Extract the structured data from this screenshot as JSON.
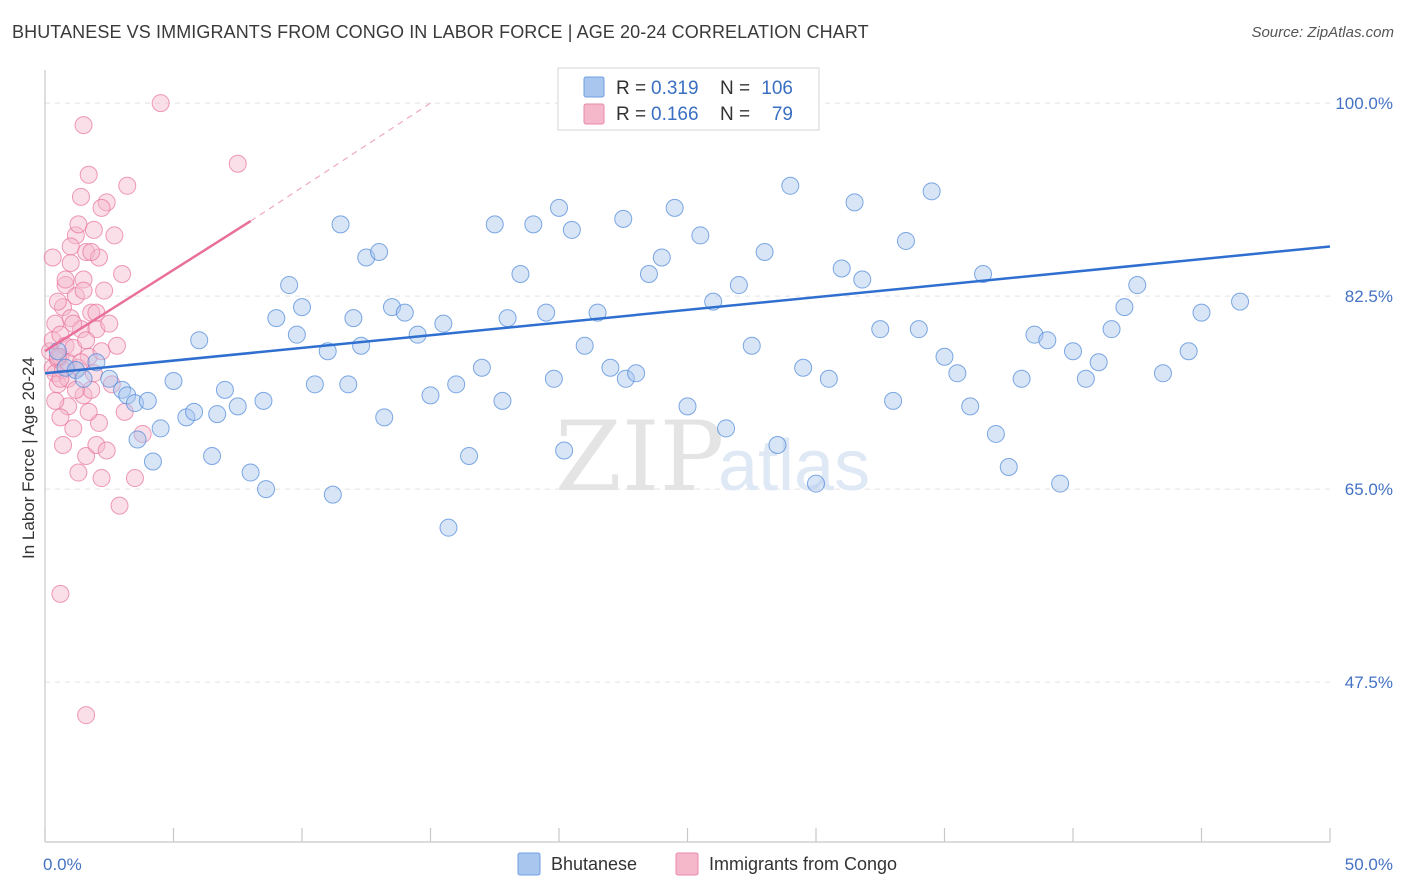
{
  "title": "BHUTANESE VS IMMIGRANTS FROM CONGO IN LABOR FORCE | AGE 20-24 CORRELATION CHART",
  "source": "Source: ZipAtlas.com",
  "watermark": {
    "zip": "ZIP",
    "atlas": "atlas"
  },
  "legend": {
    "rows": [
      {
        "r_label": "R =",
        "r_value": "0.319",
        "n_label": "N =",
        "n_value": "106",
        "color": "#a9c6ee"
      },
      {
        "r_label": "R =",
        "r_value": "0.166",
        "n_label": "N =",
        "n_value": "79",
        "color": "#f5b8cb"
      }
    ]
  },
  "bottom_legend": [
    {
      "label": "Bhutanese",
      "color": "#a9c6ee"
    },
    {
      "label": "Immigrants from Congo",
      "color": "#f5b8cb"
    }
  ],
  "chart_data": {
    "type": "scatter",
    "title": "BHUTANESE VS IMMIGRANTS FROM CONGO IN LABOR FORCE | AGE 20-24 CORRELATION CHART",
    "xlabel": "",
    "ylabel": "In Labor Force | Age 20-24",
    "xlim": [
      0,
      50
    ],
    "ylim": [
      33,
      103
    ],
    "x_tick_labels": [
      "0.0%",
      "50.0%"
    ],
    "y_ticks": [
      47.5,
      65.0,
      82.5,
      100.0
    ],
    "y_tick_labels": [
      "47.5%",
      "65.0%",
      "82.5%",
      "100.0%"
    ],
    "grid": true,
    "series": [
      {
        "name": "Bhutanese",
        "color": "#4a86d8",
        "fill": "#a9c6ee",
        "trend": {
          "x": [
            0,
            50
          ],
          "y": [
            75.5,
            87.0
          ]
        },
        "points": [
          [
            0.5,
            77.5
          ],
          [
            0.8,
            76.0
          ],
          [
            1.2,
            75.8
          ],
          [
            1.5,
            75.0
          ],
          [
            2.0,
            76.5
          ],
          [
            2.5,
            75.0
          ],
          [
            3.0,
            74.0
          ],
          [
            3.2,
            73.5
          ],
          [
            3.5,
            72.8
          ],
          [
            3.6,
            69.5
          ],
          [
            4.0,
            73.0
          ],
          [
            4.2,
            67.5
          ],
          [
            4.5,
            70.5
          ],
          [
            5.0,
            74.8
          ],
          [
            5.5,
            71.5
          ],
          [
            5.8,
            72.0
          ],
          [
            6.0,
            78.5
          ],
          [
            6.5,
            68.0
          ],
          [
            6.7,
            71.8
          ],
          [
            7.0,
            74.0
          ],
          [
            7.5,
            72.5
          ],
          [
            8.0,
            66.5
          ],
          [
            8.5,
            73.0
          ],
          [
            8.6,
            65.0
          ],
          [
            9.0,
            80.5
          ],
          [
            9.5,
            83.5
          ],
          [
            9.8,
            79.0
          ],
          [
            10.0,
            81.5
          ],
          [
            10.5,
            74.5
          ],
          [
            11.0,
            77.5
          ],
          [
            11.2,
            64.5
          ],
          [
            11.5,
            89.0
          ],
          [
            11.8,
            74.5
          ],
          [
            12.0,
            80.5
          ],
          [
            12.3,
            78.0
          ],
          [
            12.5,
            86.0
          ],
          [
            13.0,
            86.5
          ],
          [
            13.2,
            71.5
          ],
          [
            13.5,
            81.5
          ],
          [
            14.0,
            81.0
          ],
          [
            14.5,
            79.0
          ],
          [
            15.0,
            73.5
          ],
          [
            15.5,
            80.0
          ],
          [
            15.7,
            61.5
          ],
          [
            16.0,
            74.5
          ],
          [
            16.5,
            68.0
          ],
          [
            17.0,
            76.0
          ],
          [
            17.5,
            89.0
          ],
          [
            17.8,
            73.0
          ],
          [
            18.0,
            80.5
          ],
          [
            18.5,
            84.5
          ],
          [
            19.0,
            89.0
          ],
          [
            19.5,
            81.0
          ],
          [
            19.8,
            75.0
          ],
          [
            20.0,
            90.5
          ],
          [
            20.2,
            68.5
          ],
          [
            20.5,
            88.5
          ],
          [
            21.0,
            78.0
          ],
          [
            21.5,
            81.0
          ],
          [
            22.0,
            76.0
          ],
          [
            22.5,
            89.5
          ],
          [
            22.6,
            75.0
          ],
          [
            23.0,
            75.5
          ],
          [
            23.5,
            84.5
          ],
          [
            24.0,
            86.0
          ],
          [
            24.5,
            90.5
          ],
          [
            25.0,
            72.5
          ],
          [
            25.5,
            88.0
          ],
          [
            26.0,
            82.0
          ],
          [
            26.5,
            70.5
          ],
          [
            27.0,
            83.5
          ],
          [
            27.5,
            78.0
          ],
          [
            28.0,
            86.5
          ],
          [
            28.5,
            69.0
          ],
          [
            29.0,
            92.5
          ],
          [
            29.5,
            76.0
          ],
          [
            30.0,
            65.5
          ],
          [
            30.5,
            75.0
          ],
          [
            31.0,
            85.0
          ],
          [
            31.5,
            91.0
          ],
          [
            31.8,
            84.0
          ],
          [
            32.5,
            79.5
          ],
          [
            33.0,
            73.0
          ],
          [
            33.5,
            87.5
          ],
          [
            34.0,
            79.5
          ],
          [
            34.5,
            92.0
          ],
          [
            35.0,
            77.0
          ],
          [
            35.5,
            75.5
          ],
          [
            36.0,
            72.5
          ],
          [
            36.5,
            84.5
          ],
          [
            37.0,
            70.0
          ],
          [
            37.5,
            67.0
          ],
          [
            38.0,
            75.0
          ],
          [
            38.5,
            79.0
          ],
          [
            39.0,
            78.5
          ],
          [
            39.5,
            65.5
          ],
          [
            40.0,
            77.5
          ],
          [
            40.5,
            75.0
          ],
          [
            41.0,
            76.5
          ],
          [
            41.5,
            79.5
          ],
          [
            42.0,
            81.5
          ],
          [
            42.5,
            83.5
          ],
          [
            43.5,
            75.5
          ],
          [
            44.5,
            77.5
          ],
          [
            45.0,
            81.0
          ],
          [
            46.5,
            82.0
          ]
        ]
      },
      {
        "name": "Immigrants from Congo",
        "color": "#e8709b",
        "fill": "#f5b8cb",
        "trend": {
          "x": [
            0,
            8
          ],
          "y": [
            77.5,
            89.3
          ]
        },
        "trend_extension": {
          "x": [
            8,
            15
          ],
          "y": [
            89.3,
            100.0
          ]
        },
        "points": [
          [
            0.2,
            77.5
          ],
          [
            0.3,
            76.0
          ],
          [
            0.3,
            78.5
          ],
          [
            0.4,
            75.5
          ],
          [
            0.4,
            80.0
          ],
          [
            0.5,
            76.8
          ],
          [
            0.5,
            74.5
          ],
          [
            0.6,
            79.0
          ],
          [
            0.6,
            77.0
          ],
          [
            0.7,
            75.8
          ],
          [
            0.7,
            81.5
          ],
          [
            0.8,
            78.0
          ],
          [
            0.8,
            83.5
          ],
          [
            0.9,
            76.5
          ],
          [
            0.9,
            72.5
          ],
          [
            1.0,
            80.5
          ],
          [
            1.0,
            85.5
          ],
          [
            1.1,
            77.8
          ],
          [
            1.1,
            70.5
          ],
          [
            1.2,
            82.5
          ],
          [
            1.2,
            88.0
          ],
          [
            1.3,
            76.0
          ],
          [
            1.3,
            66.5
          ],
          [
            1.4,
            79.5
          ],
          [
            1.4,
            91.5
          ],
          [
            1.5,
            84.0
          ],
          [
            1.5,
            73.5
          ],
          [
            1.6,
            86.5
          ],
          [
            1.6,
            68.0
          ],
          [
            1.7,
            77.0
          ],
          [
            1.7,
            93.5
          ],
          [
            1.8,
            81.0
          ],
          [
            1.8,
            74.0
          ],
          [
            1.9,
            88.5
          ],
          [
            2.0,
            79.5
          ],
          [
            2.0,
            69.0
          ],
          [
            2.1,
            86.0
          ],
          [
            2.1,
            71.0
          ],
          [
            2.2,
            77.5
          ],
          [
            2.2,
            66.0
          ],
          [
            2.3,
            83.0
          ],
          [
            2.4,
            91.0
          ],
          [
            2.5,
            80.0
          ],
          [
            2.6,
            74.5
          ],
          [
            2.7,
            88.0
          ],
          [
            2.8,
            78.0
          ],
          [
            2.9,
            63.5
          ],
          [
            3.0,
            84.5
          ],
          [
            3.1,
            72.0
          ],
          [
            3.2,
            92.5
          ],
          [
            0.3,
            86.0
          ],
          [
            0.4,
            73.0
          ],
          [
            0.5,
            82.0
          ],
          [
            0.6,
            71.5
          ],
          [
            0.7,
            69.0
          ],
          [
            0.8,
            84.0
          ],
          [
            0.9,
            75.0
          ],
          [
            1.0,
            87.0
          ],
          [
            1.1,
            80.0
          ],
          [
            1.2,
            74.0
          ],
          [
            1.3,
            89.0
          ],
          [
            1.4,
            76.5
          ],
          [
            1.5,
            83.0
          ],
          [
            1.6,
            78.5
          ],
          [
            1.7,
            72.0
          ],
          [
            1.8,
            86.5
          ],
          [
            1.9,
            75.5
          ],
          [
            2.0,
            81.0
          ],
          [
            2.2,
            90.5
          ],
          [
            2.4,
            68.5
          ],
          [
            0.5,
            77.0
          ],
          [
            0.6,
            75.0
          ],
          [
            3.5,
            66.0
          ],
          [
            3.8,
            70.0
          ],
          [
            4.5,
            100.0
          ],
          [
            7.5,
            94.5
          ],
          [
            0.6,
            55.5
          ],
          [
            1.6,
            44.5
          ],
          [
            1.5,
            98.0
          ]
        ]
      }
    ]
  }
}
